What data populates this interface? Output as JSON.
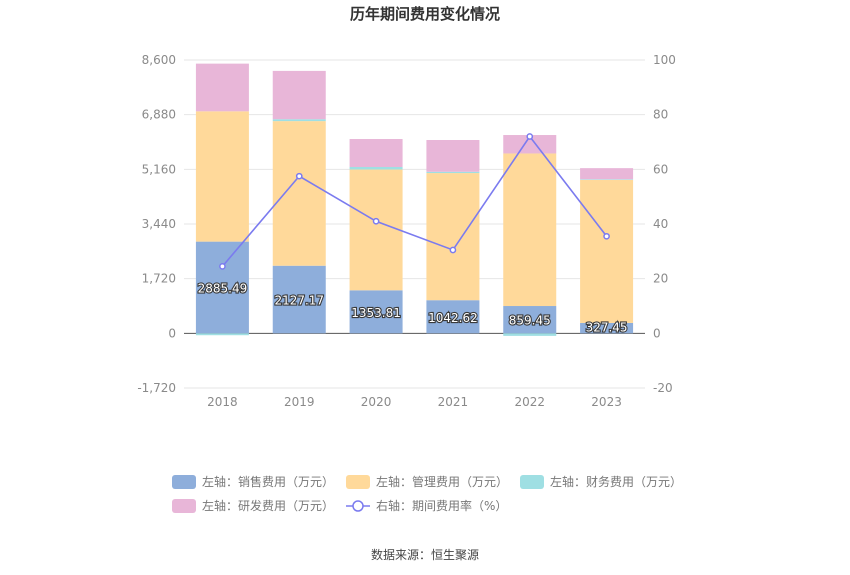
{
  "chart_data": {
    "type": "bar",
    "stacked": true,
    "title": "历年期间费用变化情况",
    "categories": [
      "2018",
      "2019",
      "2020",
      "2021",
      "2022",
      "2023"
    ],
    "series": [
      {
        "name": "左轴：销售费用（万元）",
        "axis": "left",
        "color": "#8eaedb",
        "values": [
          2885.49,
          2127.17,
          1353.81,
          1042.62,
          859.45,
          327.45
        ],
        "labels": [
          "2885.49",
          "2127.17",
          "1353.81",
          "1042.62",
          "859.45",
          "327.45"
        ]
      },
      {
        "name": "左轴：管理费用（万元）",
        "axis": "left",
        "color": "#ffd99a",
        "values": [
          4100,
          4550,
          3800,
          4000,
          4800,
          4500
        ]
      },
      {
        "name": "左轴：财务费用（万元）",
        "axis": "left",
        "color": "#9fdfe3",
        "values": [
          -60,
          60,
          80,
          40,
          -80,
          20
        ]
      },
      {
        "name": "左轴：研发费用（万元）",
        "axis": "left",
        "color": "#e8b6d8",
        "values": [
          1500,
          1520,
          880,
          1000,
          580,
          350
        ]
      },
      {
        "name": "右轴：期间费用率（%）",
        "axis": "right",
        "type": "line",
        "color": "#7b7bef",
        "values": [
          24.5,
          57.5,
          41.0,
          30.5,
          72.0,
          35.5
        ]
      }
    ],
    "yLeft": {
      "min": -1720,
      "max": 8600,
      "ticks": [
        "-1,720",
        "0",
        "1,720",
        "3,440",
        "5,160",
        "6,880",
        "8,600"
      ]
    },
    "yRight": {
      "min": -20,
      "max": 100,
      "ticks": [
        "-20",
        "0",
        "20",
        "40",
        "60",
        "80",
        "100"
      ]
    },
    "grid": true,
    "legend_position": "bottom"
  },
  "source": "数据来源：恒生聚源"
}
